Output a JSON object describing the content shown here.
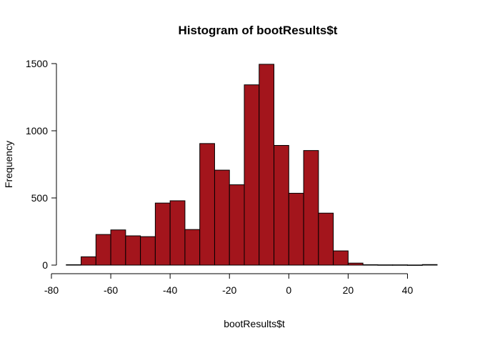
{
  "chart_data": {
    "type": "bar",
    "title": "Histogram of bootResults$t",
    "xlabel": "bootResults$t",
    "ylabel": "Frequency",
    "bar_color": "#A3151C",
    "border_color": "#000000",
    "grid": false,
    "legend": "none",
    "xlim": [
      -80,
      50
    ],
    "ylim": [
      0,
      1500
    ],
    "x_ticks": [
      -80,
      -60,
      -40,
      -20,
      0,
      20,
      40
    ],
    "y_ticks": [
      0,
      500,
      1000,
      1500
    ],
    "bin_width": 5,
    "bins": [
      {
        "start": -75,
        "end": -70,
        "count": 3
      },
      {
        "start": -70,
        "end": -65,
        "count": 62
      },
      {
        "start": -65,
        "end": -60,
        "count": 228
      },
      {
        "start": -60,
        "end": -55,
        "count": 262
      },
      {
        "start": -55,
        "end": -50,
        "count": 218
      },
      {
        "start": -50,
        "end": -45,
        "count": 212
      },
      {
        "start": -45,
        "end": -40,
        "count": 462
      },
      {
        "start": -40,
        "end": -35,
        "count": 479
      },
      {
        "start": -35,
        "end": -30,
        "count": 265
      },
      {
        "start": -30,
        "end": -25,
        "count": 905
      },
      {
        "start": -25,
        "end": -20,
        "count": 707
      },
      {
        "start": -20,
        "end": -15,
        "count": 598
      },
      {
        "start": -15,
        "end": -10,
        "count": 1342
      },
      {
        "start": -10,
        "end": -5,
        "count": 1495
      },
      {
        "start": -5,
        "end": 0,
        "count": 891
      },
      {
        "start": 0,
        "end": 5,
        "count": 535
      },
      {
        "start": 5,
        "end": 10,
        "count": 853
      },
      {
        "start": 10,
        "end": 15,
        "count": 387
      },
      {
        "start": 15,
        "end": 20,
        "count": 106
      },
      {
        "start": 20,
        "end": 25,
        "count": 15
      },
      {
        "start": 25,
        "end": 30,
        "count": 3
      },
      {
        "start": 30,
        "end": 35,
        "count": 2
      },
      {
        "start": 35,
        "end": 40,
        "count": 2
      },
      {
        "start": 40,
        "end": 45,
        "count": 1
      },
      {
        "start": 45,
        "end": 50,
        "count": 4
      }
    ]
  }
}
